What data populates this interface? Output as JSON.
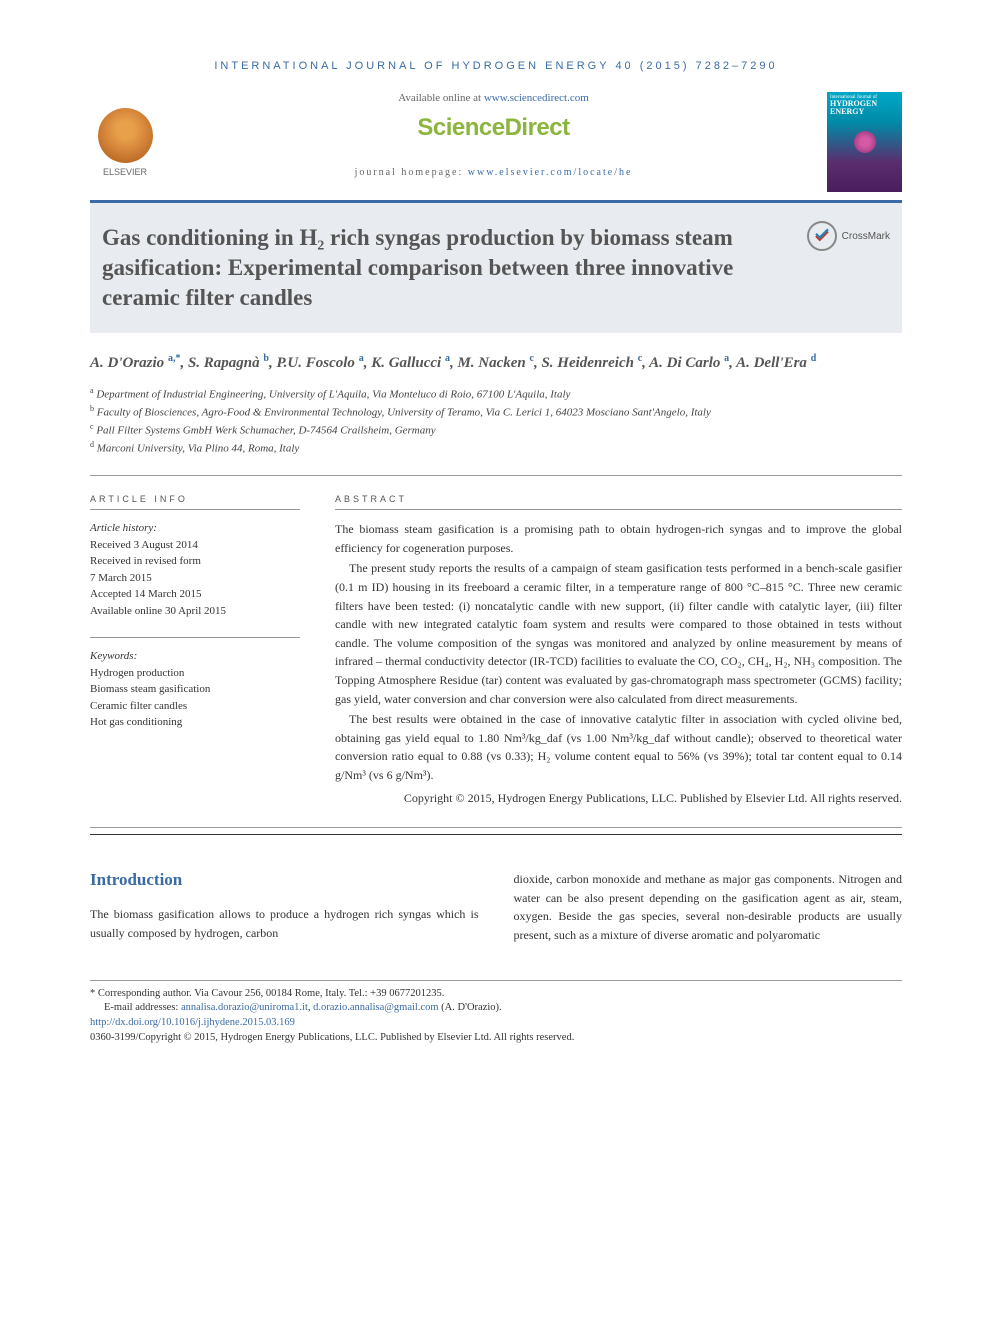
{
  "journal_header": "INTERNATIONAL JOURNAL OF HYDROGEN ENERGY 40 (2015) 7282–7290",
  "header": {
    "available_prefix": "Available online at ",
    "available_link": "www.sciencedirect.com",
    "sciencedirect": "ScienceDirect",
    "homepage_prefix": "journal homepage: ",
    "homepage_link": "www.elsevier.com/locate/he",
    "elsevier": "ELSEVIER",
    "cover_line1": "International Journal of",
    "cover_line2": "HYDROGEN",
    "cover_line3": "ENERGY"
  },
  "crossmark": "CrossMark",
  "title": "Gas conditioning in H₂ rich syngas production by biomass steam gasification: Experimental comparison between three innovative ceramic filter candles",
  "authors_html": "A. D'Orazio <span class='sup link'>a,*</span>, S. Rapagnà <span class='sup link'>b</span>, P.U. Foscolo <span class='sup link'>a</span>, K. Gallucci <span class='sup link'>a</span>, M. Nacken <span class='sup link'>c</span>, S. Heidenreich <span class='sup link'>c</span>, A. Di Carlo <span class='sup link'>a</span>, A. Dell'Era <span class='sup link'>d</span>",
  "affiliations": [
    {
      "sup": "a",
      "text": "Department of Industrial Engineering, University of L'Aquila, Via Monteluco di Roio, 67100 L'Aquila, Italy"
    },
    {
      "sup": "b",
      "text": "Faculty of Biosciences, Agro-Food & Environmental Technology, University of Teramo, Via C. Lerici 1, 64023 Mosciano Sant'Angelo, Italy"
    },
    {
      "sup": "c",
      "text": "Pall Filter Systems GmbH Werk Schumacher, D-74564 Crailsheim, Germany"
    },
    {
      "sup": "d",
      "text": "Marconi University, Via Plino 44, Roma, Italy"
    }
  ],
  "info": {
    "heading1": "ARTICLE INFO",
    "history_label": "Article history:",
    "history": [
      "Received 3 August 2014",
      "Received in revised form",
      "7 March 2015",
      "Accepted 14 March 2015",
      "Available online 30 April 2015"
    ],
    "keywords_label": "Keywords:",
    "keywords": [
      "Hydrogen production",
      "Biomass steam gasification",
      "Ceramic filter candles",
      "Hot gas conditioning"
    ]
  },
  "abstract": {
    "heading": "ABSTRACT",
    "paragraphs": [
      "The biomass steam gasification is a promising path to obtain hydrogen-rich syngas and to improve the global efficiency for cogeneration purposes.",
      "The present study reports the results of a campaign of steam gasification tests performed in a bench-scale gasifier (0.1 m ID) housing in its freeboard a ceramic filter, in a temperature range of 800 °C–815 °C. Three new ceramic filters have been tested: (i) noncatalytic candle with new support, (ii) filter candle with catalytic layer, (iii) filter candle with new integrated catalytic foam system and results were compared to those obtained in tests without candle. The volume composition of the syngas was monitored and analyzed by online measurement by means of infrared – thermal conductivity detector (IR-TCD) facilities to evaluate the CO, CO₂, CH₄, H₂, NH₃ composition. The Topping Atmosphere Residue (tar) content was evaluated by gas-chromatograph mass spectrometer (GCMS) facility; gas yield, water conversion and char conversion were also calculated from direct measurements.",
      "The best results were obtained in the case of innovative catalytic filter in association with cycled olivine bed, obtaining gas yield equal to 1.80 Nm³/kg_daf (vs 1.00 Nm³/kg_daf without candle); observed to theoretical water conversion ratio equal to 0.88 (vs 0.33); H₂ volume content equal to 56% (vs 39%); total tar content equal to 0.14 g/Nm³ (vs 6 g/Nm³)."
    ],
    "copyright": "Copyright © 2015, Hydrogen Energy Publications, LLC. Published by Elsevier Ltd. All rights reserved."
  },
  "intro": {
    "heading": "Introduction",
    "col1": "The biomass gasification allows to produce a hydrogen rich syngas which is usually composed by hydrogen, carbon",
    "col2": "dioxide, carbon monoxide and methane as major gas components. Nitrogen and water can be also present depending on the gasification agent as air, steam, oxygen. Beside the gas species, several non-desirable products are usually present, such as a mixture of diverse aromatic and polyaromatic"
  },
  "footnotes": {
    "corr": "* Corresponding author. Via Cavour 256, 00184 Rome, Italy. Tel.: +39 0677201235.",
    "email_label": "E-mail addresses: ",
    "email1": "annalisa.dorazio@uniroma1.it",
    "email_sep": ", ",
    "email2": "d.orazio.annalisa@gmail.com",
    "email_suffix": " (A. D'Orazio).",
    "doi": "http://dx.doi.org/10.1016/j.ijhydene.2015.03.169",
    "issn": "0360-3199/Copyright © 2015, Hydrogen Energy Publications, LLC. Published by Elsevier Ltd. All rights reserved."
  },
  "colors": {
    "link": "#3a6ba5",
    "title_gray": "#555555",
    "sd_green": "#8bb53d",
    "bar_bg": "#e8ebf0"
  }
}
